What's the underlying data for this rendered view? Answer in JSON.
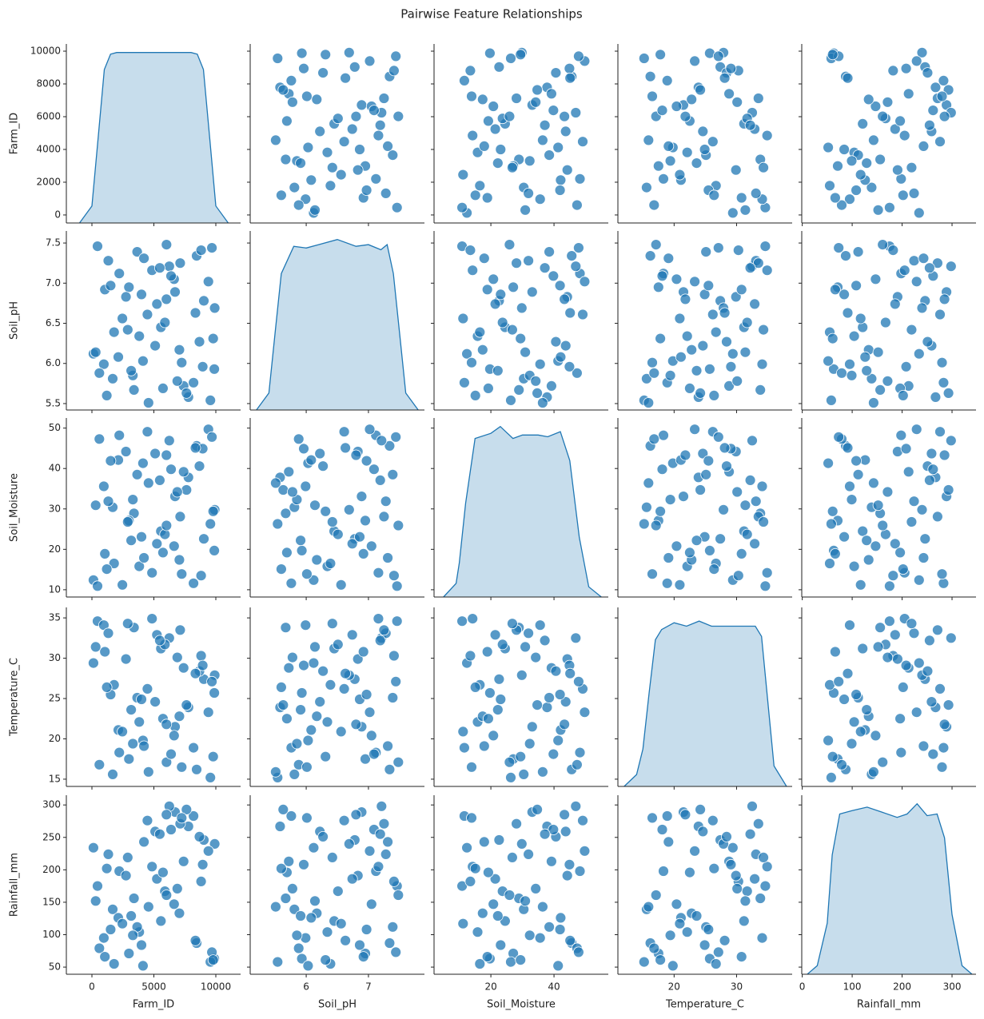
{
  "chart_data": {
    "type": "pairplot",
    "title": "Pairwise Feature Relationships",
    "color": "#1f77b4",
    "kde_ylim": [
      0,
      1.05
    ],
    "variables": [
      {
        "name": "Farm_ID",
        "values": [
          123,
          8452,
          3391,
          6710,
          9875,
          2204,
          5566,
          7789,
          451,
          4123,
          9034,
          1678,
          6245,
          3820,
          7401,
          2987,
          8810,
          5102,
          963,
          6633,
          4478,
          9561,
          1320,
          7056,
          2745,
          8199,
          3654,
          5890,
          601,
          9912,
          4850,
          2130,
          7634,
          1045,
          6021,
          8677,
          3302,
          5245,
          9398,
          1789,
          4567,
          7120,
          2456,
          8943,
          3999,
          6387,
          301,
          5734,
          9687,
          2890,
          7245,
          1512,
          6889,
          4201,
          8356,
          3167,
          5478,
          9790,
          1201,
          6012
        ],
        "kde": {
          "x": [
            -1000,
            0,
            500,
            1000,
            1500,
            2000,
            5000,
            8000,
            8500,
            9000,
            9500,
            10000,
            11000
          ],
          "y": [
            0,
            0.1,
            0.5,
            0.9,
            0.99,
            1,
            1,
            1,
            0.99,
            0.9,
            0.5,
            0.1,
            0
          ]
        },
        "xlim": [
          -2065,
          12000
        ],
        "xticks": [
          0,
          5000,
          10000
        ],
        "ylim": [
          -490,
          10440
        ],
        "yticks": [
          0,
          2000,
          4000,
          6000,
          8000,
          10000
        ]
      },
      {
        "name": "Soil_pH",
        "values": [
          6.12,
          7.34,
          5.67,
          6.89,
          5.93,
          7.12,
          6.45,
          5.58,
          7.46,
          6.03,
          6.78,
          5.81,
          7.21,
          6.34,
          5.72,
          6.95,
          7.41,
          6.22,
          5.99,
          7.05,
          6.61,
          5.54,
          7.28,
          6.17,
          6.83,
          5.76,
          7.39,
          6.51,
          5.88,
          6.69,
          7.16,
          6.08,
          5.63,
          6.92,
          7.48,
          6.27,
          5.85,
          6.74,
          7.02,
          6.39,
          5.51,
          7.25,
          6.56,
          5.96,
          6.86,
          7.09,
          6.14,
          5.69,
          7.44,
          6.42,
          6.01,
          6.97,
          5.78,
          7.31,
          6.63,
          5.91,
          7.19,
          6.31,
          5.6,
          6.8
        ],
        "kde": {
          "x": [
            5.2,
            5.4,
            5.5,
            5.6,
            5.8,
            6.0,
            6.2,
            6.5,
            6.8,
            7.0,
            7.2,
            7.3,
            7.4,
            7.5,
            7.6,
            7.8
          ],
          "y": [
            0,
            0.1,
            0.45,
            0.8,
            0.96,
            0.95,
            0.97,
            1.0,
            0.96,
            0.97,
            0.94,
            0.97,
            0.8,
            0.45,
            0.1,
            0
          ]
        },
        "xlim": [
          5.1,
          7.9
        ],
        "xticks": [
          6,
          7
        ],
        "ylim": [
          5.42,
          7.65
        ],
        "yticks": [
          5.5,
          {
            "value": 6,
            "label": "6.0"
          },
          6.5,
          {
            "value": 7,
            "label": "7.0"
          },
          7.5
        ]
      },
      {
        "name": "Soil_Moisture",
        "values": [
          12.4,
          45.6,
          28.9,
          33.1,
          19.7,
          48.2,
          24.5,
          37.8,
          10.9,
          41.3,
          22.6,
          30.4,
          46.9,
          15.8,
          39.2,
          27.1,
          13.5,
          43.7,
          35.6,
          20.8,
          49.1,
          26.3,
          31.9,
          17.4,
          44.2,
          11.6,
          38.5,
          23.7,
          47.3,
          29.8,
          14.2,
          42.1,
          34.7,
          18.9,
          25.9,
          40.6,
          32.3,
          21.4,
          49.7,
          16.5,
          36.4,
          28.1,
          11.2,
          44.9,
          23.1,
          39.8,
          30.9,
          19.2,
          47.8,
          26.8,
          13.9,
          41.9,
          34.2,
          17.9,
          45.1,
          22.2,
          37.1,
          29.4,
          15.1,
          43.3
        ],
        "kde": {
          "x": [
            5,
            9,
            10,
            12,
            15,
            20,
            23,
            27,
            30,
            35,
            38,
            42,
            45,
            48,
            51,
            55
          ],
          "y": [
            0,
            0.08,
            0.2,
            0.55,
            0.93,
            0.96,
            1.0,
            0.93,
            0.95,
            0.95,
            0.94,
            0.97,
            0.8,
            0.35,
            0.06,
            0
          ]
        },
        "xlim": [
          2,
          57.2
        ],
        "xticks": [
          20,
          40
        ],
        "ylim": [
          8.2,
          52.5
        ],
        "yticks": [
          10,
          20,
          30,
          40,
          50
        ]
      },
      {
        "name": "Temperature_C",
        "values": [
          29.4,
          16.2,
          33.8,
          21.5,
          25.7,
          18.3,
          31.2,
          23.9,
          34.6,
          19.8,
          27.4,
          15.6,
          32.5,
          22.1,
          28.8,
          17.5,
          30.3,
          24.6,
          34.1,
          20.4,
          26.2,
          15.2,
          33.1,
          22.8,
          29.9,
          18.9,
          25.1,
          31.7,
          16.8,
          27.9,
          34.9,
          21.1,
          24.2,
          30.8,
          17.1,
          28.4,
          19.4,
          32.9,
          23.3,
          26.7,
          15.9,
          33.5,
          20.9,
          29.1,
          24.9,
          18.1,
          31.4,
          22.5,
          27.1,
          34.3,
          16.5,
          25.5,
          30.1,
          19.1,
          28.1,
          23.6,
          32.2,
          17.8,
          26.4,
          21.8
        ],
        "kde": {
          "x": [
            12,
            14,
            15,
            16,
            17,
            18,
            20,
            22,
            24,
            26,
            30,
            33,
            34,
            35,
            36,
            38
          ],
          "y": [
            0,
            0.07,
            0.22,
            0.55,
            0.86,
            0.92,
            0.96,
            0.94,
            0.97,
            0.94,
            0.94,
            0.94,
            0.88,
            0.5,
            0.12,
            0
          ]
        },
        "xlim": [
          11,
          38.9
        ],
        "xticks": [
          20,
          30
        ],
        "ylim": [
          14.1,
          36.3
        ],
        "yticks": [
          15,
          20,
          25,
          30,
          35
        ]
      },
      {
        "name": "Rainfall_mm",
        "values": [
          234,
          87,
          156,
          289,
          63,
          198,
          121,
          267,
          175,
          52,
          246,
          139,
          298,
          104,
          213,
          71,
          182,
          259,
          95,
          147,
          276,
          58,
          224,
          133,
          191,
          283,
          112,
          167,
          79,
          240,
          205,
          126,
          293,
          66,
          161,
          251,
          99,
          186,
          229,
          55,
          143,
          271,
          117,
          208,
          84,
          262,
          152,
          196,
          73,
          219,
          280,
          108,
          171,
          243,
          91,
          129,
          255,
          61,
          202,
          285
        ],
        "kde": {
          "x": [
            10,
            30,
            50,
            60,
            75,
            100,
            130,
            160,
            190,
            210,
            230,
            250,
            270,
            285,
            300,
            320,
            340
          ],
          "y": [
            0,
            0.05,
            0.3,
            0.7,
            0.94,
            0.96,
            0.98,
            0.95,
            0.92,
            0.94,
            1.0,
            0.93,
            0.94,
            0.8,
            0.35,
            0.05,
            0
          ]
        },
        "xlim": [
          -1,
          348
        ],
        "xticks": [
          0,
          100,
          200,
          300
        ],
        "ylim": [
          39,
          315
        ],
        "yticks": [
          50,
          100,
          150,
          200,
          250,
          300
        ]
      }
    ]
  }
}
